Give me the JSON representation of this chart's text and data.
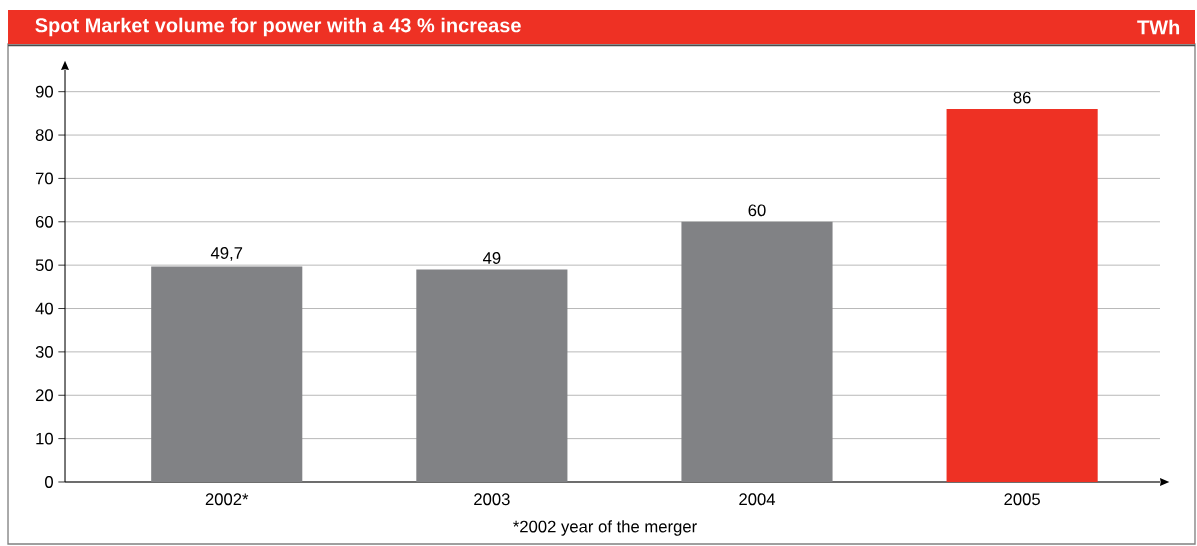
{
  "chart_data": {
    "type": "bar",
    "title": "Spot Market volume for power with a 43 % increase",
    "ylabel": "TWh",
    "categories": [
      "2002*",
      "2003",
      "2004",
      "2005"
    ],
    "values": [
      49.7,
      49,
      60,
      86
    ],
    "value_labels": [
      "49,7",
      "49",
      "60",
      "86"
    ],
    "colors": [
      "#818285",
      "#818285",
      "#818285",
      "#ee3124"
    ],
    "ylim": [
      0,
      95
    ],
    "yticks": [
      0,
      10,
      20,
      30,
      40,
      50,
      60,
      70,
      80,
      90
    ],
    "grid": "y",
    "annotations": [
      "*2002 year of the merger"
    ]
  }
}
